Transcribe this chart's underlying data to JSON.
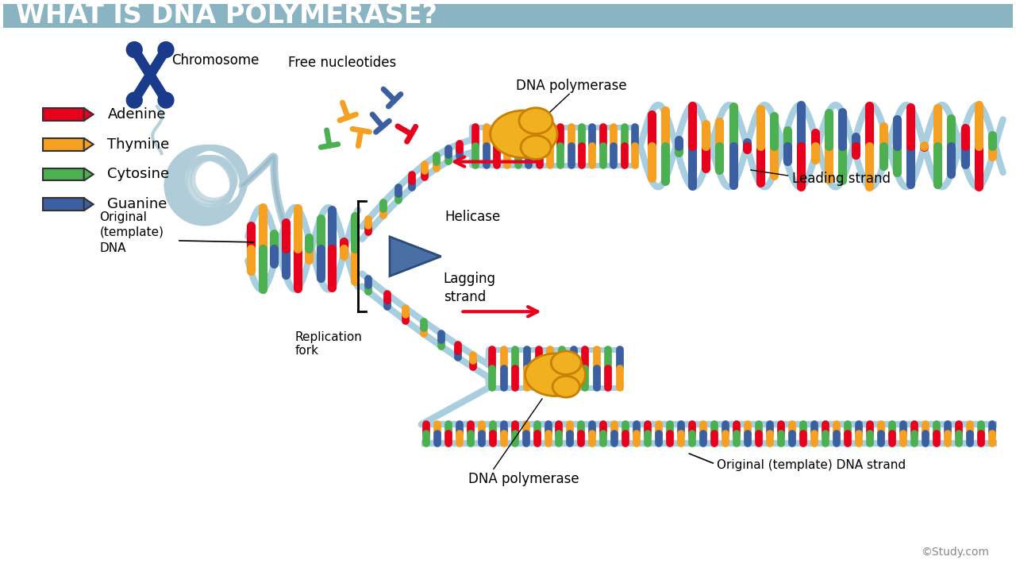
{
  "title": "WHAT IS DNA POLYMERASE?",
  "title_bg_color": "#8ab4c2",
  "title_text_color": "#ffffff",
  "bg_color": "#ffffff",
  "legend_items": [
    {
      "label": "Adenine",
      "color": "#e8001c"
    },
    {
      "label": "Thymine",
      "color": "#f5a020"
    },
    {
      "label": "Cytosine",
      "color": "#4caf50"
    },
    {
      "label": "Guanine",
      "color": "#3b5fa0"
    }
  ],
  "labels": {
    "chromosome": "Chromosome",
    "original_dna": "Original\n(template)\nDNA",
    "replication_fork": "Replication\nfork",
    "free_nucleotides": "Free nucleotides",
    "helicase": "Helicase",
    "lagging_strand": "Lagging\nstrand",
    "leading_strand": "Leading strand",
    "dna_polymerase_top": "DNA polymerase",
    "dna_polymerase_bottom": "DNA polymerase",
    "original_template_strand": "Original (template) DNA strand",
    "study_credit": "©Study.com"
  },
  "strand_colors": {
    "backbone": "#a8cfe0",
    "backbone_dark": "#7aafc0",
    "adenine": "#e8001c",
    "thymine": "#f5a020",
    "cytosine": "#4caf50",
    "guanine": "#3b5fa0"
  },
  "polymerase_color": "#f0b020",
  "polymerase_edge": "#c88000",
  "helicase_color": "#4a6fa5",
  "helicase_edge": "#2c4a7a",
  "arrow_color": "#e8001c"
}
